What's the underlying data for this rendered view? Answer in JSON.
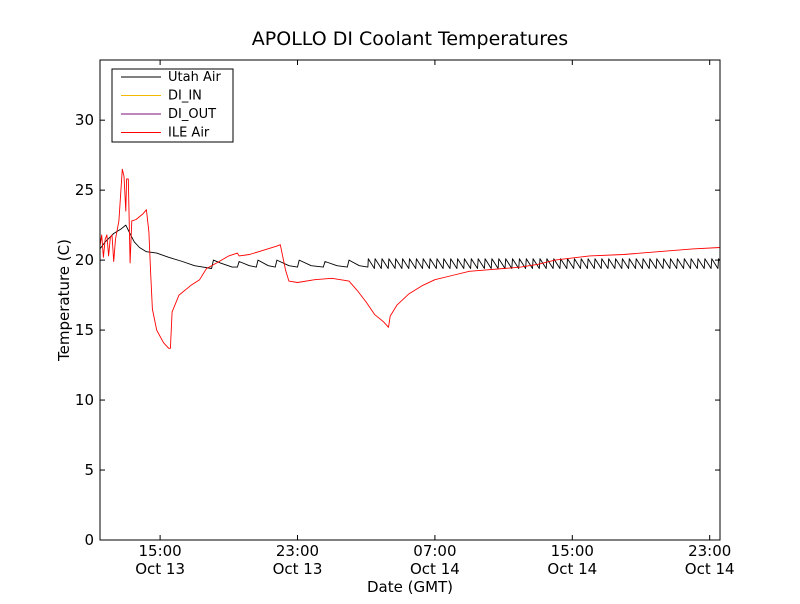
{
  "chart_data": {
    "type": "line",
    "title": "APOLLO DI Coolant Temperatures",
    "xlabel": "Date (GMT)",
    "ylabel": "Temperature (C)",
    "ylim": [
      0,
      34.3
    ],
    "xlim_hours": [
      11.5,
      47.6
    ],
    "y_ticks": [
      0,
      5,
      10,
      15,
      20,
      25,
      30
    ],
    "x_ticks": [
      {
        "hour": 15,
        "time": "15:00",
        "date": "Oct 13"
      },
      {
        "hour": 23,
        "time": "23:00",
        "date": "Oct 13"
      },
      {
        "hour": 31,
        "time": "07:00",
        "date": "Oct 14"
      },
      {
        "hour": 39,
        "time": "15:00",
        "date": "Oct 14"
      },
      {
        "hour": 47,
        "time": "23:00",
        "date": "Oct 14"
      }
    ],
    "legend_position": "top-left",
    "series": [
      {
        "name": "Utah Air",
        "color": "#000000",
        "points": [
          [
            11.5,
            20.8
          ],
          [
            11.8,
            21.3
          ],
          [
            12.3,
            21.9
          ],
          [
            12.7,
            22.2
          ],
          [
            13.0,
            22.5
          ],
          [
            13.2,
            22.0
          ],
          [
            13.5,
            21.3
          ],
          [
            13.8,
            20.9
          ],
          [
            14.2,
            20.6
          ],
          [
            14.8,
            20.5
          ],
          [
            15.5,
            20.2
          ],
          [
            16.3,
            19.9
          ],
          [
            17.0,
            19.6
          ],
          [
            17.5,
            19.5
          ],
          [
            18.0,
            19.4
          ],
          [
            18.1,
            20.0
          ],
          [
            18.5,
            19.8
          ],
          [
            19.2,
            19.5
          ],
          [
            19.5,
            19.5
          ],
          [
            19.6,
            19.9
          ],
          [
            20.2,
            19.6
          ],
          [
            20.6,
            19.5
          ],
          [
            20.7,
            20.0
          ],
          [
            21.3,
            19.6
          ],
          [
            21.7,
            19.5
          ],
          [
            21.8,
            20.0
          ],
          [
            22.5,
            19.6
          ],
          [
            23.0,
            19.5
          ],
          [
            23.1,
            20.0
          ],
          [
            23.8,
            19.6
          ],
          [
            24.5,
            19.5
          ],
          [
            24.6,
            19.9
          ],
          [
            25.3,
            19.6
          ],
          [
            25.9,
            19.5
          ],
          [
            26.0,
            20.0
          ],
          [
            26.6,
            19.6
          ],
          [
            27.1,
            19.5
          ]
        ],
        "oscillation": {
          "from_hour": 27.1,
          "to_hour": 47.6,
          "period_hours": 0.4,
          "high": 20.1,
          "low": 19.4
        }
      },
      {
        "name": "DI_IN",
        "color": "#f5b800",
        "points": []
      },
      {
        "name": "DI_OUT",
        "color": "#7b0f7b",
        "points": []
      },
      {
        "name": "ILE Air",
        "color": "#ff0000",
        "points": [
          [
            11.5,
            21.0
          ],
          [
            11.6,
            21.8
          ],
          [
            11.7,
            20.2
          ],
          [
            11.8,
            21.5
          ],
          [
            11.9,
            21.8
          ],
          [
            12.0,
            20.3
          ],
          [
            12.1,
            21.6
          ],
          [
            12.2,
            21.8
          ],
          [
            12.3,
            19.9
          ],
          [
            12.4,
            21.5
          ],
          [
            12.6,
            22.8
          ],
          [
            12.8,
            26.5
          ],
          [
            12.9,
            26.0
          ],
          [
            13.0,
            23.5
          ],
          [
            13.05,
            25.8
          ],
          [
            13.15,
            25.8
          ],
          [
            13.25,
            19.8
          ],
          [
            13.35,
            22.8
          ],
          [
            13.6,
            22.9
          ],
          [
            14.0,
            23.3
          ],
          [
            14.2,
            23.6
          ],
          [
            14.35,
            22.0
          ],
          [
            14.45,
            19.0
          ],
          [
            14.55,
            16.5
          ],
          [
            14.8,
            15.0
          ],
          [
            15.2,
            14.1
          ],
          [
            15.5,
            13.7
          ],
          [
            15.6,
            13.7
          ],
          [
            15.7,
            16.3
          ],
          [
            16.1,
            17.5
          ],
          [
            16.8,
            18.2
          ],
          [
            17.3,
            18.6
          ],
          [
            17.7,
            19.4
          ],
          [
            18.3,
            19.8
          ],
          [
            19.0,
            20.3
          ],
          [
            19.5,
            20.5
          ],
          [
            19.6,
            20.3
          ],
          [
            20.2,
            20.4
          ],
          [
            21.0,
            20.7
          ],
          [
            21.8,
            21.0
          ],
          [
            22.0,
            21.1
          ],
          [
            22.3,
            19.3
          ],
          [
            22.5,
            18.5
          ],
          [
            23.0,
            18.4
          ],
          [
            24.0,
            18.6
          ],
          [
            25.0,
            18.7
          ],
          [
            26.0,
            18.5
          ],
          [
            26.5,
            17.8
          ],
          [
            27.0,
            17.0
          ],
          [
            27.5,
            16.1
          ],
          [
            28.0,
            15.6
          ],
          [
            28.3,
            15.2
          ],
          [
            28.4,
            16.0
          ],
          [
            28.8,
            16.8
          ],
          [
            29.5,
            17.6
          ],
          [
            30.3,
            18.2
          ],
          [
            31.0,
            18.6
          ],
          [
            32.0,
            18.9
          ],
          [
            33.0,
            19.2
          ],
          [
            34.0,
            19.3
          ],
          [
            35.0,
            19.4
          ],
          [
            36.0,
            19.5
          ],
          [
            37.0,
            19.7
          ],
          [
            38.0,
            20.0
          ],
          [
            40.0,
            20.3
          ],
          [
            42.0,
            20.4
          ],
          [
            44.0,
            20.6
          ],
          [
            46.0,
            20.8
          ],
          [
            47.6,
            20.9
          ]
        ]
      }
    ]
  }
}
